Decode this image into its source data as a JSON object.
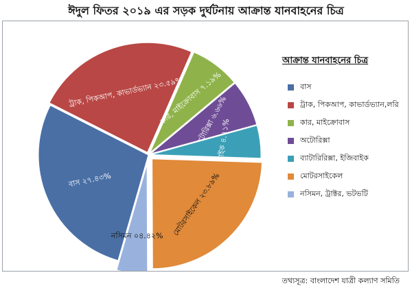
{
  "title": "ঈদুল ফিতর ২০১৯ এর সড়ক দুর্ঘটনায় আক্রান্ত যানবাহনের চিত্র",
  "source_note": "তথ্যসূত্র: বাংলাদেশ যাত্রী কল্যাণ সমিতি",
  "chart_data": {
    "type": "pie",
    "legend_title": "আক্রান্ত যানবাহনের চিত্র",
    "legend_position": "right",
    "slices": [
      {
        "legend": "বাস",
        "label": "বাস ২৭.৪৩%",
        "value": 27.43,
        "color": "#4a6fa5",
        "label_color": "#ffffff"
      },
      {
        "legend": "ট্রাক, পিকআপ, কাভার্ডভ্যান,লরি",
        "label": "ট্রাক, পিকআপ, কাভার্ডভ্যান ২৩.৫৯%",
        "value": 23.59,
        "color": "#b94745",
        "label_color": "#ffffff"
      },
      {
        "legend": "কার, মাইক্রোবাস",
        "label": "কার, মাইক্রোবাস ৭.১৯%",
        "value": 7.19,
        "color": "#8fb34a",
        "label_color": "#ffffff"
      },
      {
        "legend": "অটোরিক্সা",
        "label": "অটোরিক্সা ৬.৬৬%",
        "value": 6.66,
        "color": "#6f4d96",
        "label_color": "#ffffff"
      },
      {
        "legend": "ব্যাটারিরিক্সা, ইজিবাইক",
        "label": "ইজিবাইক ৪.৭১%",
        "value": 4.71,
        "color": "#3ba0b7",
        "label_color": "#ffffff"
      },
      {
        "legend": "মোটরসাইকেল",
        "label": "মোটরসাইকেল ২৩.৮৯%",
        "value": 23.89,
        "color": "#e08a3a",
        "label_color": "#111111"
      },
      {
        "legend": "নসিমন, ট্রাক্টর, ভটভটি",
        "label": "নসিমন ০৪.৪২%",
        "value": 4.42,
        "color": "#99b2dd",
        "label_color": "#111111"
      }
    ]
  }
}
